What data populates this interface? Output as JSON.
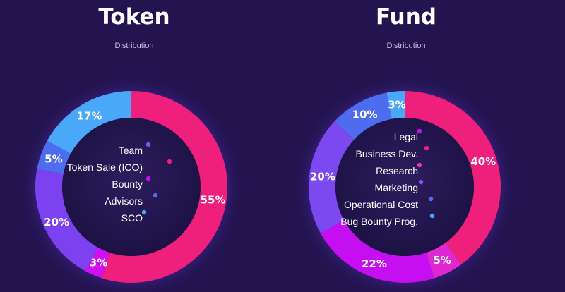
{
  "chart_data": [
    {
      "type": "pie",
      "title": "Token",
      "subtitle": "Distribution",
      "categories": [
        "Team",
        "Token Sale (ICO)",
        "Bounty",
        "Advisors",
        "SCO"
      ],
      "slices": [
        {
          "label": "55%",
          "value": 55,
          "color": "#ef1f7c"
        },
        {
          "label": "3%",
          "value": 3,
          "color": "#d010ee"
        },
        {
          "label": "20%",
          "value": 20,
          "color": "#7d42f0"
        },
        {
          "label": "5%",
          "value": 5,
          "color": "#4e6cf0"
        },
        {
          "label": "17%",
          "value": 17,
          "color": "#4aa8f9"
        }
      ],
      "legend": [
        {
          "label": "Team",
          "dot_color": "#7b55ef"
        },
        {
          "label": "Token Sale (ICO)",
          "dot_color": "#ef1f7c"
        },
        {
          "label": "Bounty",
          "dot_color": "#c413e6"
        },
        {
          "label": "Advisors",
          "dot_color": "#5a68ee"
        },
        {
          "label": "SCO",
          "dot_color": "#4aa8f9"
        }
      ]
    },
    {
      "type": "pie",
      "title": "Fund",
      "subtitle": "Distribution",
      "categories": [
        "Legal",
        "Business Dev.",
        "Research",
        "Marketing",
        "Operational Cost",
        "Bug Bounty Prog."
      ],
      "slices": [
        {
          "label": "40%",
          "value": 40,
          "color": "#ef1f7c"
        },
        {
          "label": "5%",
          "value": 5,
          "color": "#e028d2"
        },
        {
          "label": "22%",
          "value": 22,
          "color": "#c50ff0"
        },
        {
          "label": "20%",
          "value": 20,
          "color": "#7c48f0"
        },
        {
          "label": "10%",
          "value": 10,
          "color": "#4e6cf0"
        },
        {
          "label": "3%",
          "value": 3,
          "color": "#4aa8f9"
        }
      ],
      "legend": [
        {
          "label": "Legal",
          "dot_color": "#c413e6"
        },
        {
          "label": "Business Dev.",
          "dot_color": "#ef1f7c"
        },
        {
          "label": "Research",
          "dot_color": "#e33aa5"
        },
        {
          "label": "Marketing",
          "dot_color": "#7b55ef"
        },
        {
          "label": "Operational Cost",
          "dot_color": "#5a68ee"
        },
        {
          "label": "Bug Bounty Prog.",
          "dot_color": "#4aa8f9"
        }
      ]
    }
  ]
}
